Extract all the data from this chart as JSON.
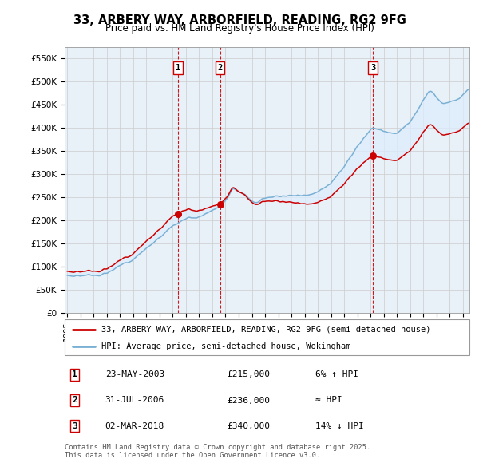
{
  "title": "33, ARBERY WAY, ARBORFIELD, READING, RG2 9FG",
  "subtitle": "Price paid vs. HM Land Registry's House Price Index (HPI)",
  "ylabel_ticks": [
    "£0",
    "£50K",
    "£100K",
    "£150K",
    "£200K",
    "£250K",
    "£300K",
    "£350K",
    "£400K",
    "£450K",
    "£500K",
    "£550K"
  ],
  "ytick_values": [
    0,
    50000,
    100000,
    150000,
    200000,
    250000,
    300000,
    350000,
    400000,
    450000,
    500000,
    550000
  ],
  "ylim": [
    0,
    575000
  ],
  "xlim_start": 1994.8,
  "xlim_end": 2025.5,
  "sale_dates": [
    2003.39,
    2006.58,
    2018.17
  ],
  "sale_prices": [
    215000,
    236000,
    340000
  ],
  "sale_labels": [
    "1",
    "2",
    "3"
  ],
  "line_color_red": "#cc0000",
  "line_color_blue": "#7ab0d4",
  "shade_color": "#ddeeff",
  "vline_color": "#cc0000",
  "box_edge_color": "#cc0000",
  "legend_label_red": "33, ARBERY WAY, ARBORFIELD, READING, RG2 9FG (semi-detached house)",
  "legend_label_blue": "HPI: Average price, semi-detached house, Wokingham",
  "table_entries": [
    {
      "num": "1",
      "date": "23-MAY-2003",
      "price": "£215,000",
      "change": "6% ↑ HPI"
    },
    {
      "num": "2",
      "date": "31-JUL-2006",
      "price": "£236,000",
      "change": "≈ HPI"
    },
    {
      "num": "3",
      "date": "02-MAR-2018",
      "price": "£340,000",
      "change": "14% ↓ HPI"
    }
  ],
  "footer": "Contains HM Land Registry data © Crown copyright and database right 2025.\nThis data is licensed under the Open Government Licence v3.0.",
  "background_color": "#ffffff",
  "grid_color": "#cccccc",
  "chart_bg": "#e8f0f8"
}
